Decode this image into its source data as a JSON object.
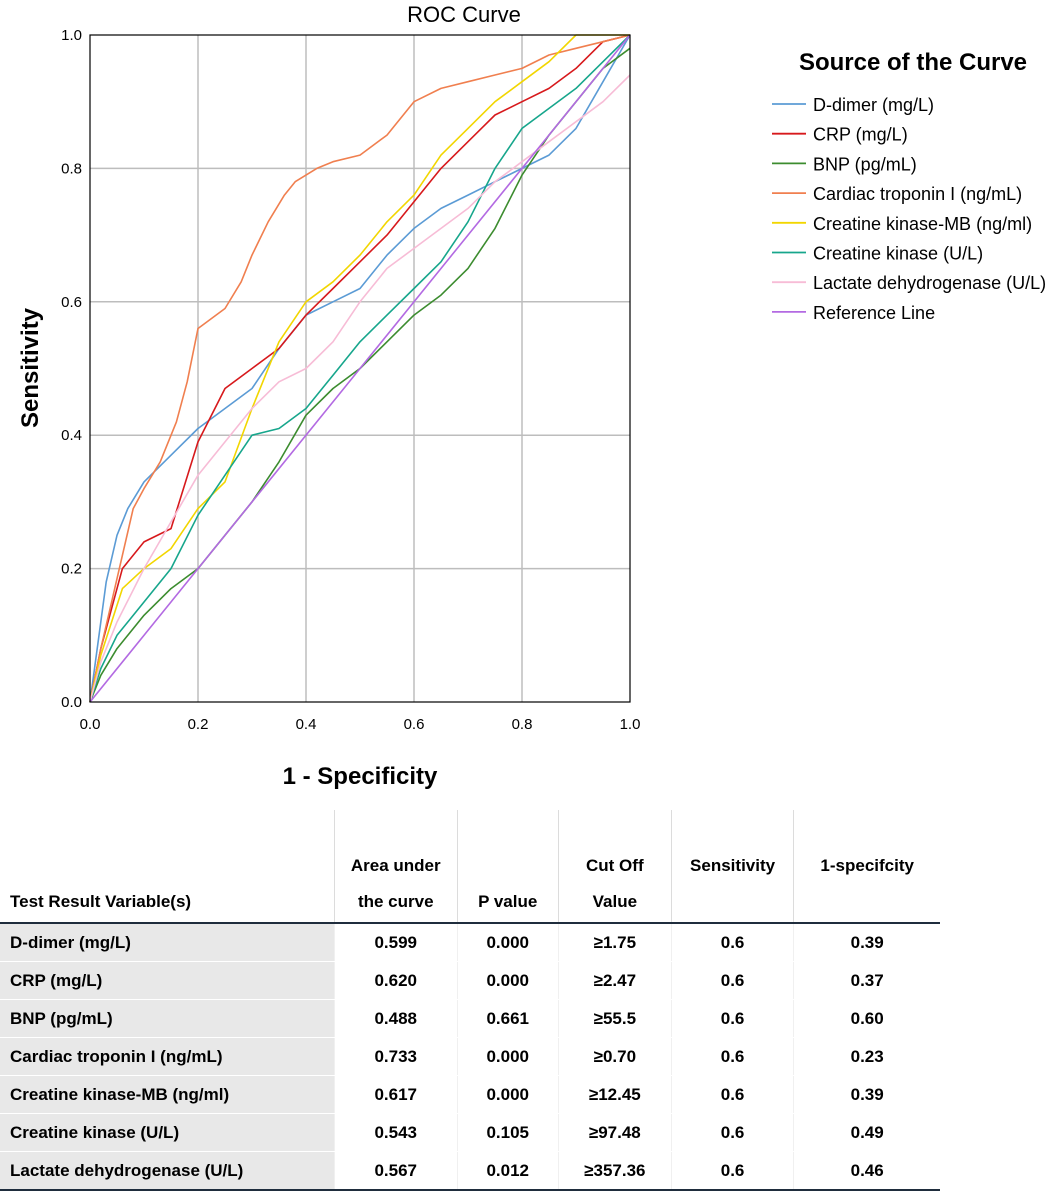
{
  "chart_data": {
    "type": "line",
    "title": "ROC Curve",
    "xlabel": "1 - Specificity",
    "ylabel": "Sensitivity",
    "xlim": [
      0,
      1
    ],
    "ylim": [
      0,
      1
    ],
    "xticks": [
      "0.0",
      "0.2",
      "0.4",
      "0.6",
      "0.8",
      "1.0"
    ],
    "yticks": [
      "0.0",
      "0.2",
      "0.4",
      "0.6",
      "0.8",
      "1.0"
    ],
    "grid": true,
    "legend_title": "Source of the Curve",
    "legend_position": "right",
    "series": [
      {
        "name": "D-dimer (mg/L)",
        "color": "#5b9bd5",
        "x": [
          0,
          0.01,
          0.02,
          0.03,
          0.05,
          0.07,
          0.1,
          0.15,
          0.2,
          0.25,
          0.3,
          0.35,
          0.4,
          0.45,
          0.5,
          0.55,
          0.6,
          0.65,
          0.7,
          0.75,
          0.8,
          0.85,
          0.9,
          0.95,
          1.0
        ],
        "y": [
          0,
          0.06,
          0.12,
          0.18,
          0.25,
          0.29,
          0.33,
          0.37,
          0.41,
          0.44,
          0.47,
          0.53,
          0.58,
          0.6,
          0.62,
          0.67,
          0.71,
          0.74,
          0.76,
          0.78,
          0.8,
          0.82,
          0.86,
          0.93,
          1.0
        ]
      },
      {
        "name": "CRP (mg/L)",
        "color": "#d7191c",
        "x": [
          0,
          0.02,
          0.04,
          0.06,
          0.1,
          0.15,
          0.2,
          0.25,
          0.3,
          0.35,
          0.4,
          0.45,
          0.5,
          0.55,
          0.6,
          0.65,
          0.7,
          0.75,
          0.8,
          0.85,
          0.9,
          0.95,
          1.0
        ],
        "y": [
          0,
          0.08,
          0.14,
          0.2,
          0.24,
          0.26,
          0.39,
          0.47,
          0.5,
          0.53,
          0.58,
          0.62,
          0.66,
          0.7,
          0.75,
          0.8,
          0.84,
          0.88,
          0.9,
          0.92,
          0.95,
          0.99,
          1.0
        ]
      },
      {
        "name": "BNP (pg/mL)",
        "color": "#3c8c2f",
        "x": [
          0,
          0.02,
          0.05,
          0.1,
          0.15,
          0.2,
          0.25,
          0.3,
          0.35,
          0.4,
          0.45,
          0.5,
          0.55,
          0.6,
          0.65,
          0.7,
          0.75,
          0.8,
          0.85,
          0.9,
          0.95,
          1.0
        ],
        "y": [
          0,
          0.04,
          0.08,
          0.13,
          0.17,
          0.2,
          0.25,
          0.3,
          0.36,
          0.43,
          0.47,
          0.5,
          0.54,
          0.58,
          0.61,
          0.65,
          0.71,
          0.79,
          0.85,
          0.9,
          0.95,
          0.98
        ]
      },
      {
        "name": "Cardiac troponin I (ng/mL)",
        "color": "#f07f4f",
        "x": [
          0,
          0.02,
          0.04,
          0.06,
          0.08,
          0.1,
          0.13,
          0.16,
          0.18,
          0.2,
          0.25,
          0.28,
          0.3,
          0.33,
          0.36,
          0.38,
          0.42,
          0.45,
          0.5,
          0.55,
          0.6,
          0.65,
          0.7,
          0.75,
          0.8,
          0.85,
          0.9,
          0.95,
          1.0
        ],
        "y": [
          0,
          0.08,
          0.15,
          0.22,
          0.29,
          0.32,
          0.36,
          0.42,
          0.48,
          0.56,
          0.59,
          0.63,
          0.67,
          0.72,
          0.76,
          0.78,
          0.8,
          0.81,
          0.82,
          0.85,
          0.9,
          0.92,
          0.93,
          0.94,
          0.95,
          0.97,
          0.98,
          0.99,
          1.0
        ]
      },
      {
        "name": "Creatine kinase-MB (ng/ml)",
        "color": "#f2d600",
        "x": [
          0,
          0.02,
          0.04,
          0.06,
          0.1,
          0.15,
          0.2,
          0.25,
          0.3,
          0.35,
          0.4,
          0.45,
          0.5,
          0.55,
          0.6,
          0.65,
          0.7,
          0.75,
          0.8,
          0.85,
          0.9,
          0.95,
          1.0
        ],
        "y": [
          0,
          0.07,
          0.12,
          0.17,
          0.2,
          0.23,
          0.29,
          0.33,
          0.44,
          0.54,
          0.6,
          0.63,
          0.67,
          0.72,
          0.76,
          0.82,
          0.86,
          0.9,
          0.93,
          0.96,
          1.0,
          1.0,
          1.0
        ]
      },
      {
        "name": "Creatine kinase (U/L)",
        "color": "#17a68c",
        "x": [
          0,
          0.02,
          0.05,
          0.1,
          0.15,
          0.2,
          0.25,
          0.3,
          0.35,
          0.4,
          0.45,
          0.5,
          0.55,
          0.6,
          0.65,
          0.7,
          0.75,
          0.8,
          0.85,
          0.9,
          0.95,
          1.0
        ],
        "y": [
          0,
          0.05,
          0.1,
          0.15,
          0.2,
          0.28,
          0.34,
          0.4,
          0.41,
          0.44,
          0.49,
          0.54,
          0.58,
          0.62,
          0.66,
          0.72,
          0.8,
          0.86,
          0.89,
          0.92,
          0.96,
          1.0
        ]
      },
      {
        "name": "Lactate dehydrogenase (U/L)",
        "color": "#f7bcd6",
        "x": [
          0,
          0.02,
          0.05,
          0.1,
          0.15,
          0.2,
          0.25,
          0.3,
          0.35,
          0.4,
          0.45,
          0.5,
          0.55,
          0.6,
          0.65,
          0.7,
          0.75,
          0.8,
          0.85,
          0.9,
          0.95,
          1.0
        ],
        "y": [
          0,
          0.06,
          0.12,
          0.2,
          0.27,
          0.34,
          0.39,
          0.44,
          0.48,
          0.5,
          0.54,
          0.6,
          0.65,
          0.68,
          0.71,
          0.74,
          0.78,
          0.81,
          0.84,
          0.87,
          0.9,
          0.94
        ]
      },
      {
        "name": "Reference Line",
        "color": "#b36ae2",
        "x": [
          0,
          1
        ],
        "y": [
          0,
          1
        ]
      }
    ]
  },
  "table": {
    "headers": [
      {
        "lines": [
          "Test Result Variable(s)"
        ]
      },
      {
        "lines": [
          "Area under",
          "the curve"
        ]
      },
      {
        "lines": [
          "P value"
        ]
      },
      {
        "lines": [
          "Cut Off",
          "Value"
        ]
      },
      {
        "lines": [
          "Sensitivity",
          ""
        ]
      },
      {
        "lines": [
          "1-specifcity",
          ""
        ]
      }
    ],
    "rows": [
      [
        "D-dimer (mg/L)",
        "0.599",
        "0.000",
        "≥1.75",
        "0.6",
        "0.39"
      ],
      [
        "CRP (mg/L)",
        "0.620",
        "0.000",
        "≥2.47",
        "0.6",
        "0.37"
      ],
      [
        "BNP (pg/mL)",
        "0.488",
        "0.661",
        "≥55.5",
        "0.6",
        "0.60"
      ],
      [
        "Cardiac troponin I (ng/mL)",
        "0.733",
        "0.000",
        "≥0.70",
        "0.6",
        "0.23"
      ],
      [
        "Creatine kinase-MB (ng/ml)",
        "0.617",
        "0.000",
        "≥12.45",
        "0.6",
        "0.39"
      ],
      [
        "Creatine kinase (U/L)",
        "0.543",
        "0.105",
        "≥97.48",
        "0.6",
        "0.49"
      ],
      [
        "Lactate dehydrogenase (U/L)",
        "0.567",
        "0.012",
        "≥357.36",
        "0.6",
        "0.46"
      ]
    ]
  }
}
